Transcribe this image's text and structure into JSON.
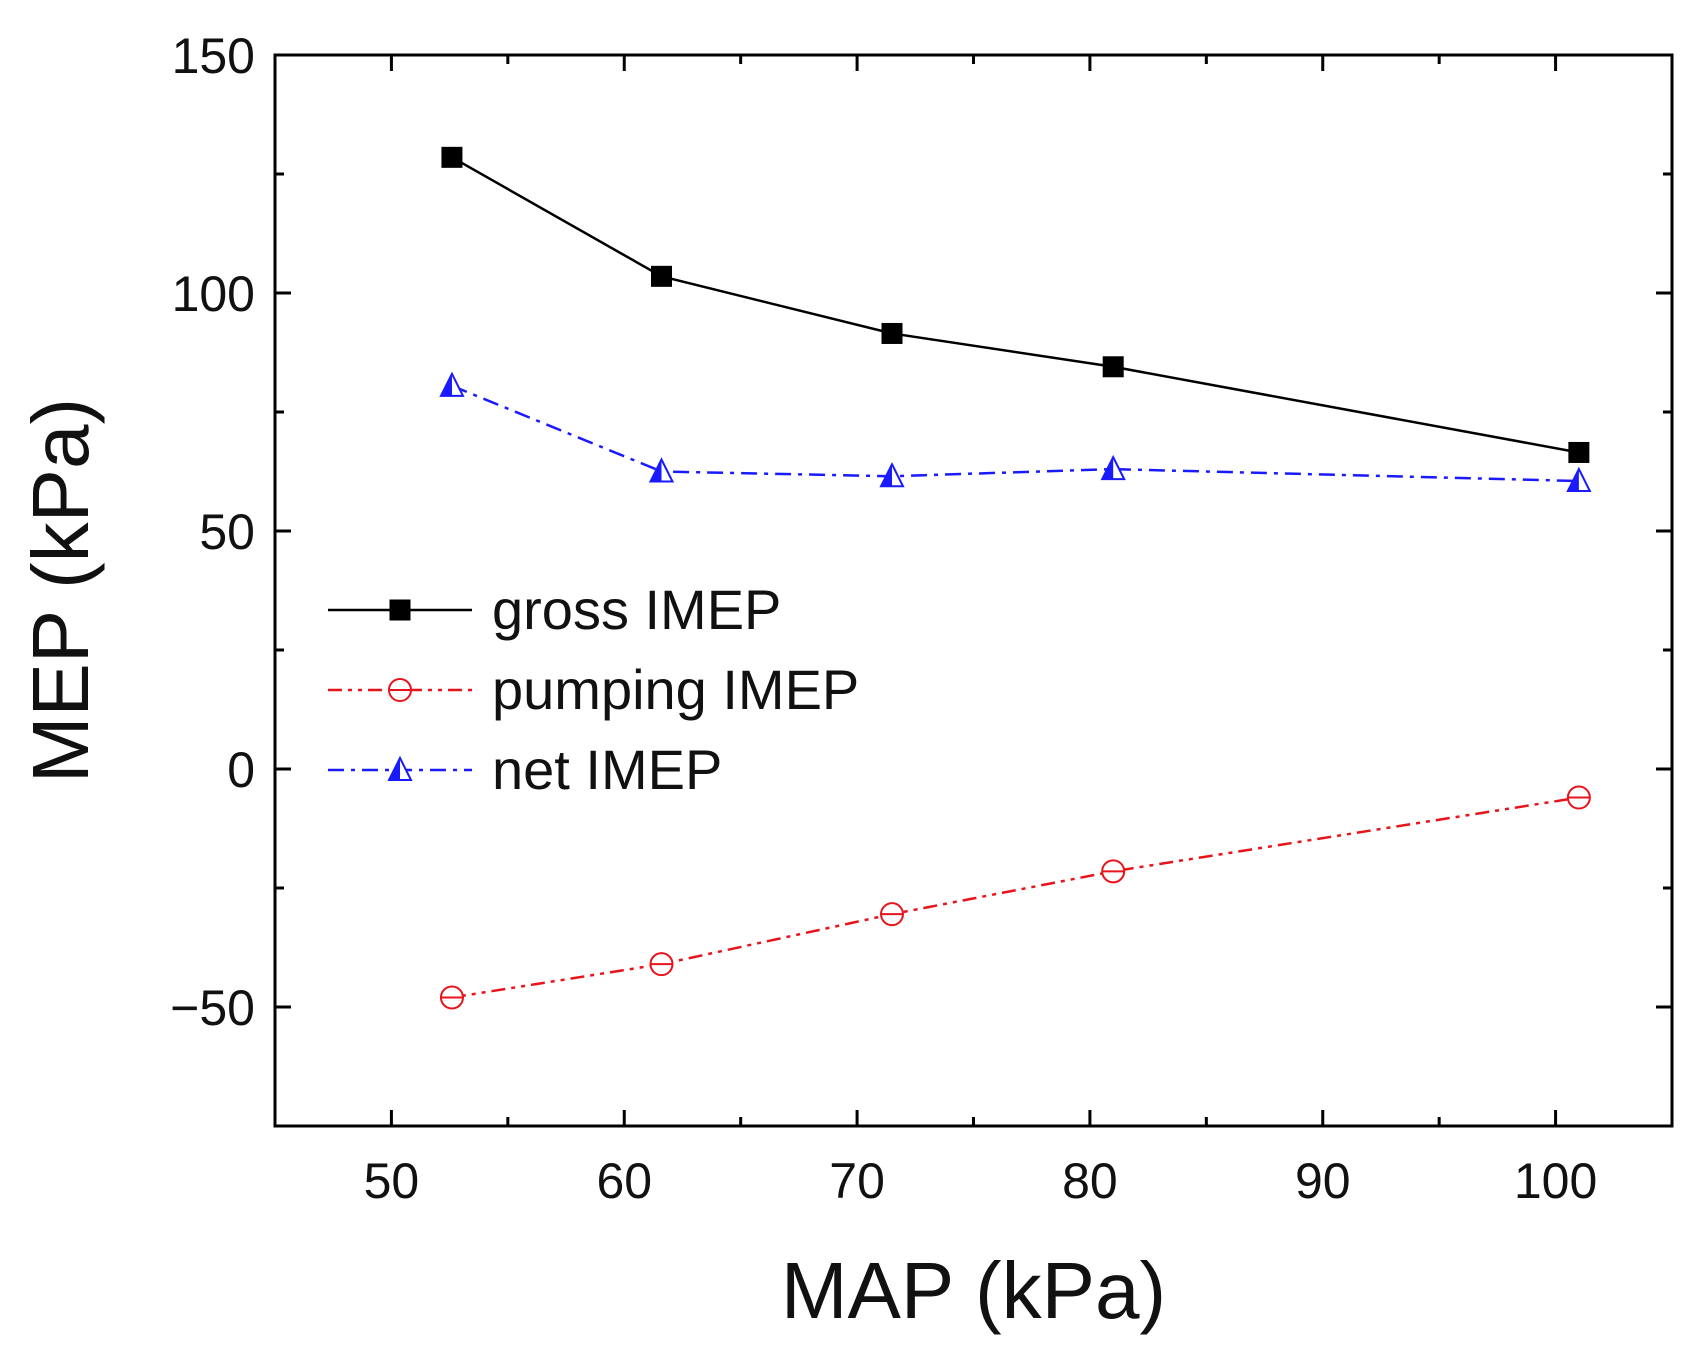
{
  "chart_data": {
    "type": "line",
    "title": "",
    "xlabel": "MAP (kPa)",
    "ylabel": "MEP (kPa)",
    "xlim": [
      45,
      105
    ],
    "ylim": [
      -75,
      150
    ],
    "x_major_ticks": [
      50,
      60,
      70,
      80,
      90,
      100
    ],
    "x_tick_labels": [
      "50",
      "60",
      "70",
      "80",
      "90",
      "100"
    ],
    "x_minor_ticks": [
      55,
      65,
      75,
      85,
      95
    ],
    "y_major_ticks": [
      -50,
      0,
      50,
      100,
      150
    ],
    "y_tick_labels": [
      "−50",
      "0",
      "50",
      "100",
      "150"
    ],
    "y_minor_ticks": [
      -25,
      25,
      75,
      125
    ],
    "grid": false,
    "legend_position": "center-left",
    "series": [
      {
        "name": "gross IMEP",
        "color": "#000000",
        "marker": "filled-square",
        "line_style": "solid",
        "x": [
          52.6,
          61.6,
          71.5,
          81.0,
          101.0
        ],
        "y": [
          128.5,
          103.5,
          91.5,
          84.5,
          66.5
        ]
      },
      {
        "name": "pumping IMEP",
        "color": "#e8141b",
        "marker": "open-circle",
        "line_style": "dash-dot-dot",
        "x": [
          52.6,
          61.6,
          71.5,
          81.0,
          101.0
        ],
        "y": [
          -48,
          -41,
          -30.5,
          -21.5,
          -6
        ]
      },
      {
        "name": "net IMEP",
        "color": "#1a1aff",
        "marker": "half-filled-triangle",
        "line_style": "dash-dot",
        "x": [
          52.6,
          61.6,
          71.5,
          81.0,
          101.0
        ],
        "y": [
          80.5,
          62.5,
          61.5,
          63,
          60.5
        ]
      }
    ]
  }
}
